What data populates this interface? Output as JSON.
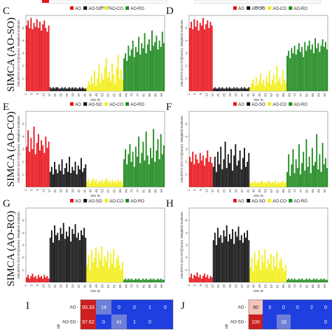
{
  "row_labels": [
    "SIMCA (AO-SO)",
    "SIMCA (AO-CO)",
    "SIMCA (AO-RO)"
  ],
  "top_strip": {
    "xlabel": "Obs ID"
  },
  "classes": [
    {
      "name": "AO",
      "color": "#e8141c"
    },
    {
      "name": "AO-SO",
      "color": "#111111"
    },
    {
      "name": "AO-CO",
      "color": "#f2ee1a"
    },
    {
      "name": "AO-RO",
      "color": "#1f8a1f"
    }
  ],
  "chart_data": [
    {
      "panel": "C",
      "type": "bar",
      "xlabel": "Obs ID",
      "ylabel": "DModXPS+[AO-SO](Norm), Weighted residuals",
      "legend_position": "top",
      "series": [
        {
          "name": "AO",
          "values": [
            5.2,
            5.6,
            5.0,
            5.8,
            4.9,
            5.4,
            5.1,
            5.7,
            5.0,
            5.5,
            4.8,
            5.3,
            5.6,
            5.0,
            4.7,
            5.2
          ]
        },
        {
          "name": "AO-SO",
          "values": [
            0.3,
            0.2,
            0.3,
            0.2,
            0.3,
            0.3,
            0.2,
            0.2,
            0.3,
            0.2,
            0.3,
            0.2,
            0.2,
            0.3,
            0.2,
            0.3,
            0.2,
            0.3,
            0.2,
            0.2,
            0.3,
            0.2,
            0.3,
            0.2,
            0.2
          ]
        },
        {
          "name": "AO-CO",
          "values": [
            0.3,
            0.8,
            0.5,
            1.2,
            0.6,
            1.6,
            0.4,
            1.0,
            2.1,
            0.7,
            1.4,
            0.9,
            1.9,
            2.6,
            1.1,
            1.5,
            0.8,
            2.2,
            1.3,
            0.6,
            1.8,
            2.9,
            1.0,
            1.7,
            0.9
          ]
        },
        {
          "name": "AO-RO",
          "values": [
            2.6,
            3.0,
            2.4,
            3.6,
            2.8,
            3.3,
            4.0,
            2.7,
            3.5,
            3.1,
            4.3,
            2.9,
            3.8,
            3.4,
            4.6,
            3.0,
            3.7,
            4.1,
            3.2,
            4.8,
            3.6,
            3.9,
            4.4,
            3.3,
            4.0,
            3.5,
            4.7,
            3.8
          ]
        }
      ]
    },
    {
      "panel": "D",
      "type": "bar",
      "xlabel": "Obs ID",
      "ylabel": "DModXPS+[AO-SO](Norm), Weighted residuals",
      "legend_position": "top",
      "series": [
        {
          "name": "AO",
          "values": [
            5.0,
            5.5,
            4.9,
            5.7,
            5.1,
            5.6,
            4.8,
            5.4,
            5.2,
            5.8,
            4.9,
            5.3,
            5.6,
            5.0,
            5.5,
            5.2
          ]
        },
        {
          "name": "AO-SO",
          "values": [
            0.2,
            0.3,
            0.2,
            0.2,
            0.3,
            0.2,
            0.3,
            0.2,
            0.2,
            0.3,
            0.2,
            0.3,
            0.2,
            0.2,
            0.3,
            0.2,
            0.3,
            0.2,
            0.2,
            0.3,
            0.2,
            0.3,
            0.2,
            0.2,
            0.3
          ]
        },
        {
          "name": "AO-CO",
          "values": [
            0.3,
            0.6,
            0.9,
            0.4,
            1.1,
            0.5,
            0.8,
            1.4,
            0.6,
            0.9,
            0.4,
            1.2,
            0.7,
            1.6,
            0.5,
            0.9,
            1.3,
            0.6,
            2.0,
            0.8,
            1.1,
            0.5,
            1.7,
            0.9,
            0.6
          ]
        },
        {
          "name": "AO-RO",
          "values": [
            2.8,
            3.2,
            2.6,
            3.4,
            3.0,
            3.6,
            2.9,
            3.3,
            3.8,
            3.1,
            3.5,
            2.7,
            3.9,
            3.2,
            3.6,
            4.0,
            3.3,
            3.7,
            3.0,
            4.2,
            3.4,
            3.8,
            3.1,
            3.6,
            4.1,
            3.5,
            3.9,
            3.3
          ]
        }
      ]
    },
    {
      "panel": "E",
      "type": "bar",
      "xlabel": "Obs ID",
      "ylabel": "DModXPS+[AO-CO](Norm), Weighted residuals",
      "legend_position": "top",
      "series": [
        {
          "name": "AO",
          "values": [
            3.2,
            4.5,
            2.8,
            3.9,
            3.0,
            4.8,
            2.6,
            3.5,
            4.2,
            2.9,
            3.7,
            3.3,
            2.7,
            4.0,
            3.1,
            3.6
          ]
        },
        {
          "name": "AO-SO",
          "values": [
            1.2,
            1.6,
            1.0,
            2.0,
            1.4,
            1.1,
            1.8,
            1.3,
            2.2,
            1.0,
            1.5,
            1.9,
            1.2,
            2.4,
            1.1,
            1.6,
            1.3,
            2.0,
            1.0,
            1.7,
            1.4,
            2.3,
            1.2,
            1.5,
            1.8
          ]
        },
        {
          "name": "AO-CO",
          "values": [
            0.4,
            0.6,
            0.3,
            0.5,
            0.7,
            0.4,
            0.6,
            0.3,
            0.5,
            0.4,
            0.6,
            0.3,
            0.5,
            0.7,
            0.4,
            0.5,
            0.3,
            0.6,
            0.4,
            0.5,
            0.3,
            0.6,
            0.4,
            0.5,
            0.3
          ]
        },
        {
          "name": "AO-RO",
          "values": [
            2.2,
            3.0,
            1.8,
            2.6,
            3.4,
            2.0,
            2.8,
            1.6,
            3.2,
            2.4,
            4.0,
            1.9,
            2.7,
            3.6,
            2.1,
            4.4,
            2.5,
            1.8,
            3.1,
            2.3,
            4.6,
            2.0,
            2.9,
            3.8,
            2.2,
            4.2,
            2.6,
            3.3
          ]
        }
      ]
    },
    {
      "panel": "F",
      "type": "bar",
      "xlabel": "Obs ID",
      "ylabel": "DModXPS+[AO-CO](Norm), Weighted residuals",
      "legend_position": "top",
      "series": [
        {
          "name": "AO",
          "values": [
            2.4,
            2.0,
            2.8,
            1.8,
            2.6,
            2.2,
            1.9,
            2.7,
            2.1,
            2.5,
            1.7,
            2.3,
            2.9,
            2.0,
            2.4,
            1.9
          ]
        },
        {
          "name": "AO-SO",
          "values": [
            1.6,
            2.4,
            1.2,
            2.8,
            1.8,
            3.2,
            1.4,
            2.2,
            3.6,
            1.5,
            2.6,
            1.9,
            3.0,
            1.3,
            2.5,
            3.4,
            1.7,
            2.1,
            2.9,
            1.4,
            2.3,
            3.1,
            1.6,
            2.0,
            2.7
          ]
        },
        {
          "name": "AO-CO",
          "values": [
            0.3,
            0.4,
            0.3,
            0.5,
            0.3,
            0.4,
            0.3,
            0.4,
            0.5,
            0.3,
            0.4,
            0.3,
            0.5,
            0.4,
            0.3,
            0.4,
            0.3,
            0.5,
            0.3,
            0.4,
            0.3,
            0.4,
            0.5,
            0.3,
            0.4
          ]
        },
        {
          "name": "AO-RO",
          "values": [
            1.2,
            2.6,
            0.9,
            1.8,
            3.0,
            1.1,
            2.2,
            1.5,
            3.4,
            1.0,
            1.9,
            2.8,
            1.3,
            3.8,
            1.6,
            2.4,
            1.1,
            3.1,
            1.7,
            2.0,
            4.2,
            1.4,
            2.6,
            1.2,
            3.5,
            1.8,
            2.3,
            1.5
          ]
        }
      ]
    },
    {
      "panel": "G",
      "type": "bar",
      "xlabel": "Obs ID",
      "ylabel": "DModXPS+[AO-RO](Norm), Weighted residuals",
      "legend_position": "top",
      "series": [
        {
          "name": "AO",
          "values": [
            0.4,
            0.6,
            0.3,
            0.5,
            0.7,
            0.4,
            0.5,
            0.3,
            0.6,
            0.4,
            0.5,
            0.3,
            0.6,
            0.4,
            0.5,
            0.3
          ]
        },
        {
          "name": "AO-SO",
          "values": [
            3.6,
            4.2,
            3.2,
            4.6,
            3.8,
            4.0,
            3.4,
            4.4,
            3.9,
            4.8,
            3.5,
            4.1,
            3.7,
            4.5,
            3.3,
            4.3,
            3.9,
            4.7,
            3.6,
            4.0,
            3.4,
            4.2,
            3.8,
            4.4,
            3.6
          ]
        },
        {
          "name": "AO-CO",
          "values": [
            1.4,
            2.2,
            1.0,
            2.6,
            1.6,
            2.0,
            2.8,
            1.2,
            2.4,
            1.8,
            2.9,
            1.3,
            2.1,
            1.7,
            2.5,
            1.1,
            2.3,
            1.5,
            2.7,
            1.2,
            1.9,
            2.2,
            1.4,
            1.0,
            1.6
          ]
        },
        {
          "name": "AO-RO",
          "values": [
            0.2,
            0.3,
            0.2,
            0.3,
            0.2,
            0.3,
            0.2,
            0.2,
            0.3,
            0.2,
            0.3,
            0.2,
            0.2,
            0.3,
            0.2,
            0.3,
            0.2,
            0.2,
            0.3,
            0.2,
            0.3,
            0.2,
            0.2,
            0.3,
            0.2,
            0.3,
            0.2,
            0.2
          ]
        }
      ]
    },
    {
      "panel": "H",
      "type": "bar",
      "xlabel": "Obs ID",
      "ylabel": "DModXPS+[AO-RO](Norm), Weighted residuals",
      "legend_position": "top",
      "series": [
        {
          "name": "AO",
          "values": [
            0.4,
            0.7,
            0.3,
            0.6,
            0.5,
            0.8,
            0.4,
            0.6,
            0.3,
            0.5,
            0.7,
            0.4,
            0.6,
            0.3,
            0.5,
            0.4
          ]
        },
        {
          "name": "AO-SO",
          "values": [
            3.4,
            4.0,
            3.0,
            4.4,
            3.6,
            3.8,
            3.2,
            4.2,
            3.7,
            4.6,
            3.3,
            3.9,
            3.5,
            4.3,
            3.1,
            4.1,
            3.7,
            4.5,
            3.4,
            3.8,
            3.2,
            4.0,
            3.6,
            4.2,
            3.4
          ]
        },
        {
          "name": "AO-CO",
          "values": [
            1.2,
            2.0,
            0.9,
            2.4,
            1.4,
            1.8,
            2.6,
            1.0,
            2.2,
            1.6,
            2.7,
            1.1,
            1.9,
            1.5,
            2.3,
            1.0,
            2.1,
            1.3,
            2.5,
            1.1,
            1.7,
            2.0,
            1.2,
            0.9,
            1.4
          ]
        },
        {
          "name": "AO-RO",
          "values": [
            0.2,
            0.3,
            0.2,
            0.3,
            0.2,
            0.3,
            0.2,
            0.2,
            0.3,
            0.2,
            0.3,
            0.2,
            0.2,
            0.3,
            0.2,
            0.3,
            0.2,
            0.2,
            0.3,
            0.2,
            0.3,
            0.2,
            0.2,
            0.3,
            0.2,
            0.3,
            0.2,
            0.2
          ]
        }
      ]
    },
    {
      "panel": "I",
      "type": "heatmap",
      "ylabel": "ue",
      "row_labels": [
        "AO",
        "AO-SO"
      ],
      "values": [
        [
          "93.33",
          "14",
          "0",
          "0",
          "1",
          "0"
        ],
        [
          "97.62",
          "0",
          "41",
          "1",
          "0",
          ""
        ]
      ]
    },
    {
      "panel": "J",
      "type": "heatmap",
      "ylabel": "ue",
      "row_labels": [
        "AO",
        "AO-SO"
      ],
      "values": [
        [
          "60",
          "3",
          "0",
          "0",
          "2",
          "0"
        ],
        [
          "100",
          "",
          "18",
          "",
          "",
          "0"
        ]
      ]
    }
  ]
}
